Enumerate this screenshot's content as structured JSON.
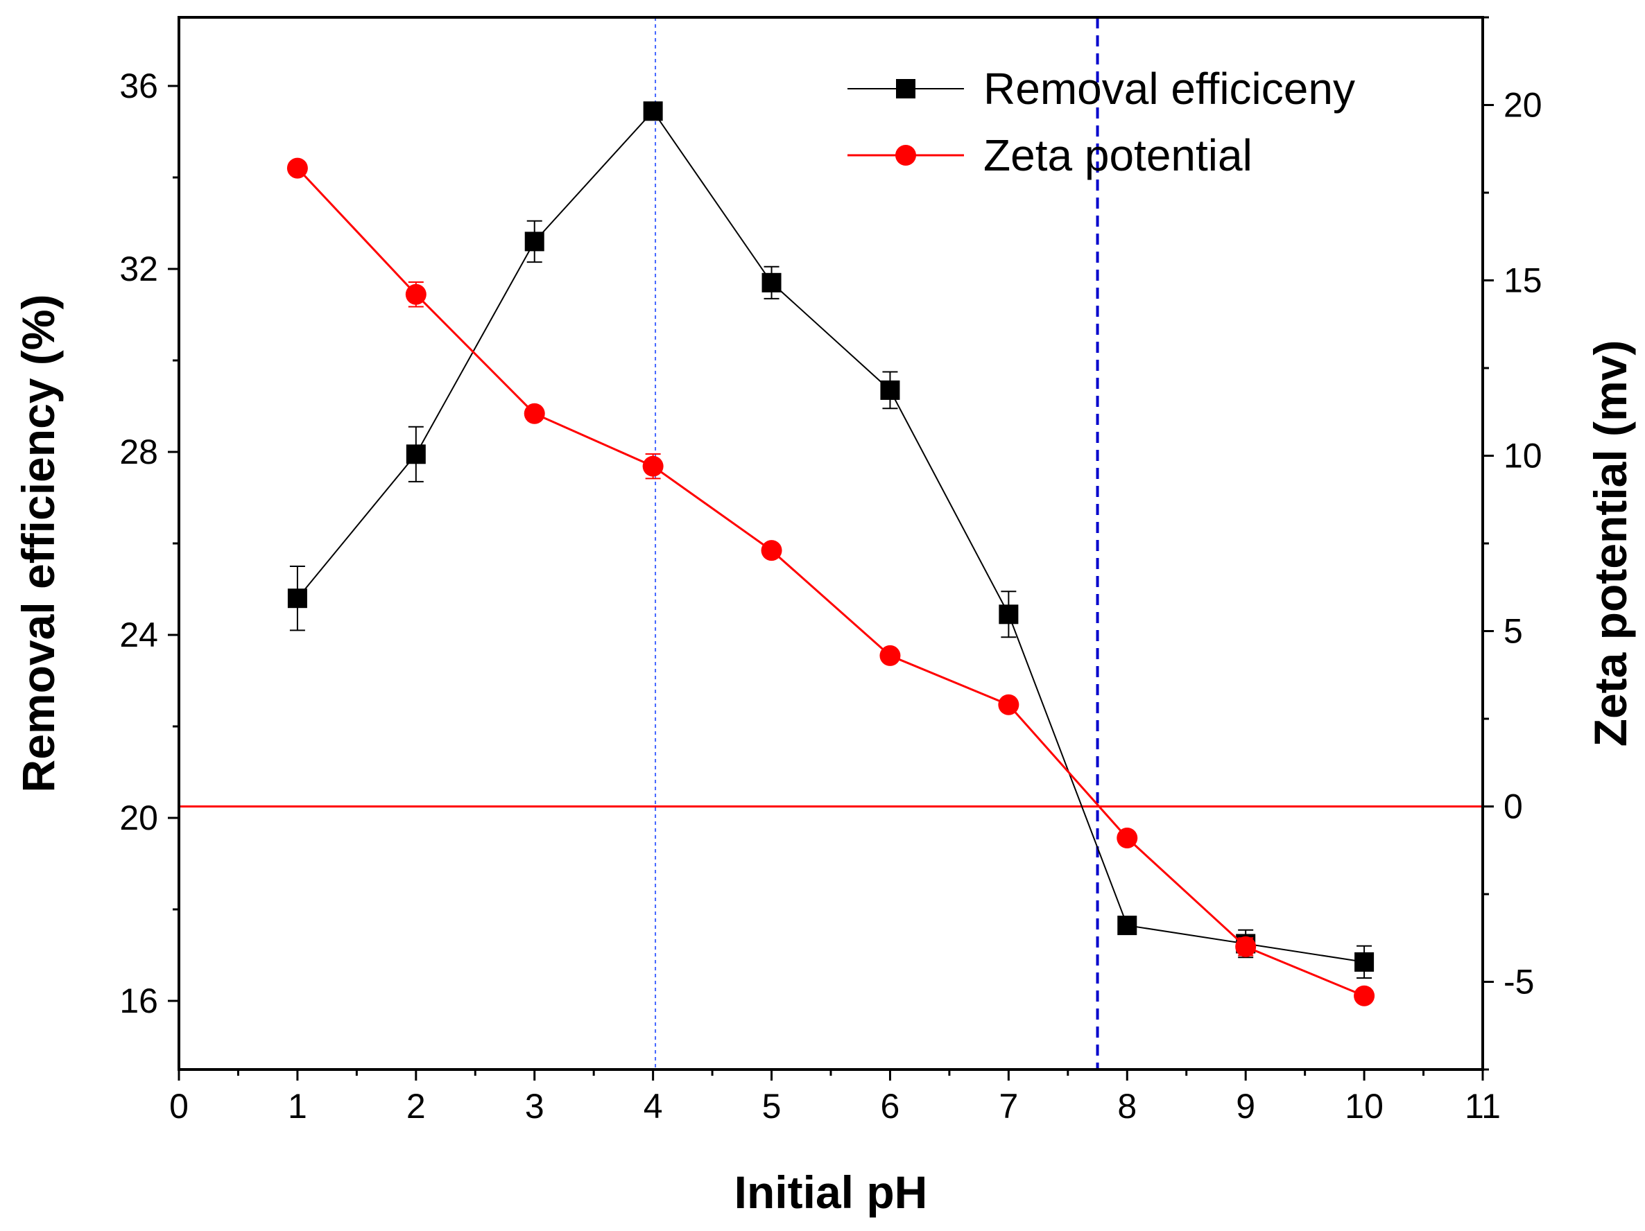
{
  "chart_data": {
    "type": "line",
    "xlabel": "Initial pH",
    "ylabel_left": "Removal efficiency (%)",
    "ylabel_right": "Zeta potential (mv)",
    "xlim": [
      0,
      11
    ],
    "ylim_left": [
      14.5,
      37.5
    ],
    "ylim_right": [
      -7.5,
      22.5
    ],
    "x_ticks": [
      "0",
      "1",
      "2",
      "3",
      "4",
      "5",
      "6",
      "7",
      "8",
      "9",
      "10",
      "11"
    ],
    "y_left_ticks": [
      "16",
      "20",
      "24",
      "28",
      "32",
      "36"
    ],
    "y_right_ticks": [
      "-5",
      "0",
      "5",
      "10",
      "15",
      "20"
    ],
    "x": [
      1,
      2,
      3,
      4,
      5,
      6,
      7,
      8,
      9,
      10
    ],
    "series": [
      {
        "name": "Removal efficiceny",
        "axis": "left",
        "color": "#000000",
        "marker": "square",
        "values": [
          24.8,
          27.95,
          32.6,
          35.45,
          31.7,
          29.35,
          24.45,
          17.65,
          17.25,
          16.85
        ],
        "errors": [
          0.7,
          0.6,
          0.45,
          0.15,
          0.35,
          0.4,
          0.5,
          0.1,
          0.3,
          0.35
        ]
      },
      {
        "name": "Zeta potential",
        "axis": "right",
        "color": "#ff0000",
        "marker": "circle",
        "values": [
          18.2,
          14.6,
          11.2,
          9.7,
          7.3,
          4.3,
          2.9,
          -0.9,
          -4.0,
          -5.4
        ],
        "errors": [
          0,
          0.35,
          0,
          0.35,
          0,
          0,
          0,
          0,
          0.25,
          0
        ]
      }
    ],
    "reference_lines": {
      "zero_line": {
        "axis": "right",
        "value": 0,
        "color": "#ff0000"
      },
      "vline_dotted": {
        "x": 4.02,
        "color": "#4466ff"
      },
      "vline_dashed": {
        "x": 7.75,
        "color": "#0000cc"
      }
    },
    "legend_position": "top-right",
    "grid": false
  }
}
